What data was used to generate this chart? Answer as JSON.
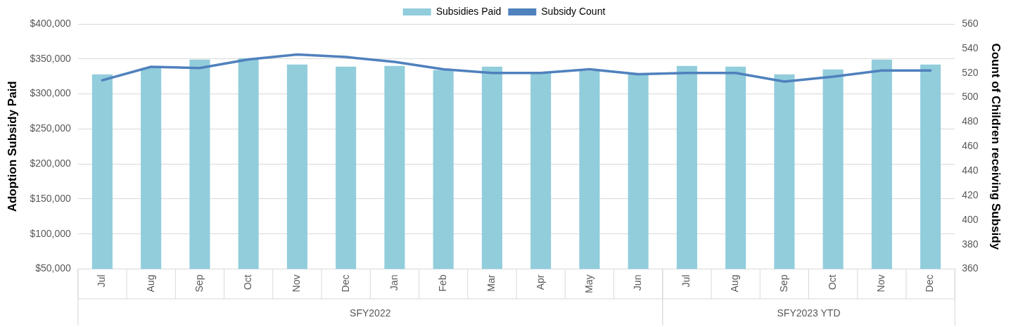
{
  "chart_data": {
    "type": "bar",
    "categories": [
      "Jul",
      "Aug",
      "Sep",
      "Oct",
      "Nov",
      "Dec",
      "Jan",
      "Feb",
      "Mar",
      "Apr",
      "May",
      "Jun",
      "Jul",
      "Aug",
      "Sep",
      "Oct",
      "Nov",
      "Dec"
    ],
    "series": [
      {
        "name": "Subsidies Paid",
        "color": "#92cddc",
        "values": [
          328000,
          337000,
          349000,
          351000,
          342000,
          339000,
          340000,
          334000,
          339000,
          331000,
          333000,
          329000,
          340000,
          339000,
          328000,
          335000,
          349000,
          342000
        ]
      },
      {
        "name": "Subsidy Count",
        "type": "line",
        "axis": "y2",
        "color": "#4f81bd",
        "values": [
          514,
          525,
          524,
          531,
          535,
          533,
          529,
          523,
          520,
          520,
          523,
          519,
          520,
          520,
          513,
          517,
          522,
          522
        ]
      }
    ],
    "ylabel": "Adoption Subsidy Paid",
    "y2label": "Count of Children receiving Subsidy",
    "ylim": [
      50000,
      400000
    ],
    "yticks": [
      {
        "value": 50000,
        "label": "$50,000"
      },
      {
        "value": 100000,
        "label": "$100,000"
      },
      {
        "value": 150000,
        "label": "$150,000"
      },
      {
        "value": 200000,
        "label": "$200,000"
      },
      {
        "value": 250000,
        "label": "$250,000"
      },
      {
        "value": 300000,
        "label": "$300,000"
      },
      {
        "value": 350000,
        "label": "$350,000"
      },
      {
        "value": 400000,
        "label": "$400,000"
      }
    ],
    "y2lim": [
      360,
      560
    ],
    "y2ticks": [
      360,
      380,
      400,
      420,
      440,
      460,
      480,
      500,
      520,
      540,
      560
    ],
    "annotations": [
      "SFY2022",
      "SFY2023 YTD"
    ],
    "grid": "y",
    "legend": "top",
    "marker": "none",
    "line_style": "solid"
  }
}
